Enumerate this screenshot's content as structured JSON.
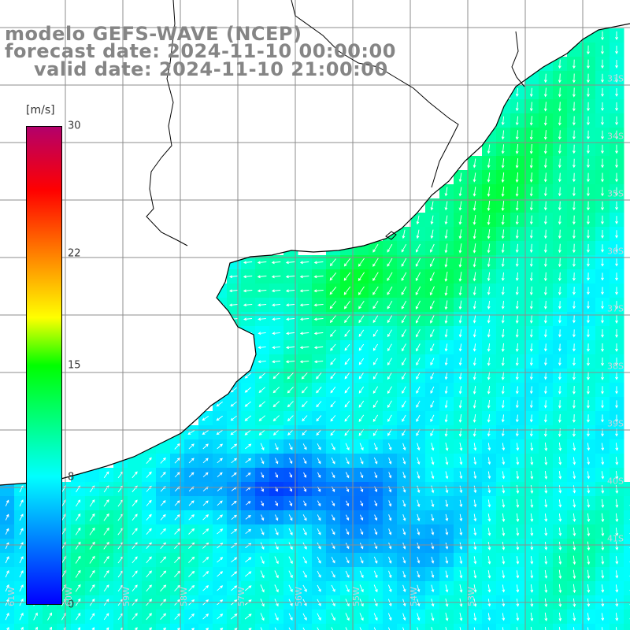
{
  "title": {
    "line1": "modelo GEFS-WAVE (NCEP)",
    "line2": "forecast date: 2024-11-10 00:00:00",
    "line3": "valid date: 2024-11-10 21:00:00"
  },
  "colorbar": {
    "unit": "[m/s]",
    "min": 0,
    "max": 30,
    "ticks": [
      {
        "label": "30",
        "value": 30
      },
      {
        "label": "22",
        "value": 22
      },
      {
        "label": "15",
        "value": 15
      },
      {
        "label": "8",
        "value": 8
      },
      {
        "label": "0",
        "value": 0
      }
    ],
    "stops": [
      {
        "value": 0,
        "color": "#0000ff"
      },
      {
        "value": 8,
        "color": "#00ffff"
      },
      {
        "value": 15,
        "color": "#00ff00"
      },
      {
        "value": 18,
        "color": "#ffff00"
      },
      {
        "value": 22,
        "color": "#ff8000"
      },
      {
        "value": 26,
        "color": "#ff0000"
      },
      {
        "value": 30,
        "color": "#b3006b"
      }
    ]
  },
  "lat_labels": [
    "33S",
    "34S",
    "35S",
    "36S",
    "37S",
    "38S",
    "39S",
    "40S",
    "41S"
  ],
  "lon_labels": [
    "61W",
    "60W",
    "59W",
    "58W",
    "57W",
    "56W",
    "55W",
    "54W",
    "53W"
  ],
  "colors": {
    "land": "#ffffff",
    "grid": "#8c8c8c",
    "coast": "#000000",
    "arrow": "#ffffff"
  }
}
